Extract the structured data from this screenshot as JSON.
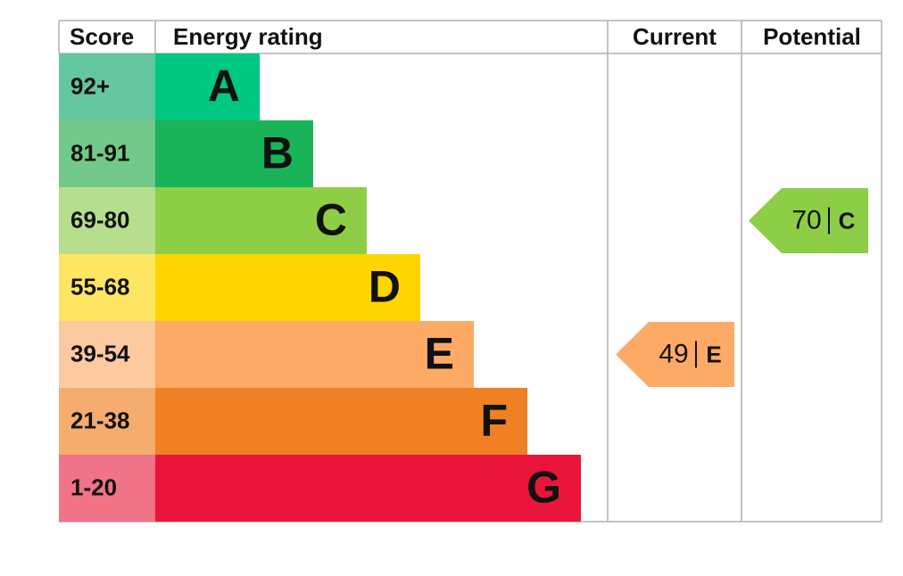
{
  "headers": {
    "score": "Score",
    "rating": "Energy rating",
    "current": "Current",
    "potential": "Potential"
  },
  "bands": [
    {
      "score": "92+",
      "letter": "A",
      "color": "#00c781",
      "score_color": "#64c7a0"
    },
    {
      "score": "81-91",
      "letter": "B",
      "color": "#19b459",
      "score_color": "#73c98a"
    },
    {
      "score": "69-80",
      "letter": "C",
      "color": "#8dce46",
      "score_color": "#b7de8c"
    },
    {
      "score": "55-68",
      "letter": "D",
      "color": "#ffd500",
      "score_color": "#ffe564"
    },
    {
      "score": "39-54",
      "letter": "E",
      "color": "#fcaa65",
      "score_color": "#fdc99e"
    },
    {
      "score": "21-38",
      "letter": "F",
      "color": "#ef8023",
      "score_color": "#f4ac6f"
    },
    {
      "score": "1-20",
      "letter": "G",
      "color": "#e9153b",
      "score_color": "#f07388"
    }
  ],
  "current": {
    "value": 49,
    "letter": "E"
  },
  "potential": {
    "value": 70,
    "letter": "C"
  }
}
